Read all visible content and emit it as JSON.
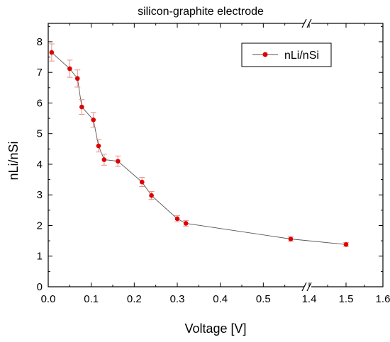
{
  "chart_data": {
    "type": "scatter",
    "title": "silicon-graphite electrode",
    "xlabel": "Voltage [V]",
    "ylabel": "nLi/nSi",
    "x_tick_labels": [
      "0.0",
      "0.1",
      "0.2",
      "0.3",
      "0.4",
      "0.5",
      "1.4",
      "1.5",
      "1.6"
    ],
    "x_tick_values": [
      0.0,
      0.1,
      0.2,
      0.3,
      0.4,
      0.5,
      1.4,
      1.5,
      1.6
    ],
    "x_axis_break": {
      "from": 0.6,
      "to": 1.4
    },
    "xlim": [
      0.0,
      1.6
    ],
    "ylim": [
      0,
      8.6
    ],
    "y_tick_values": [
      0,
      1,
      2,
      3,
      4,
      5,
      6,
      7,
      8
    ],
    "y_tick_labels": [
      "0",
      "1",
      "2",
      "3",
      "4",
      "5",
      "6",
      "7",
      "8"
    ],
    "legend_position": "top-right",
    "series": [
      {
        "name": "nLi/nSi",
        "color": "#e00000",
        "line_color": "#555555",
        "errorbar_color": "#e8908a",
        "points": [
          {
            "x": 0.008,
            "y": 7.65,
            "err": 0.28
          },
          {
            "x": 0.05,
            "y": 7.12,
            "err": 0.28
          },
          {
            "x": 0.068,
            "y": 6.8,
            "err": 0.28
          },
          {
            "x": 0.078,
            "y": 5.87,
            "err": 0.24
          },
          {
            "x": 0.105,
            "y": 5.45,
            "err": 0.24
          },
          {
            "x": 0.117,
            "y": 4.6,
            "err": 0.2
          },
          {
            "x": 0.13,
            "y": 4.15,
            "err": 0.18
          },
          {
            "x": 0.162,
            "y": 4.1,
            "err": 0.17
          },
          {
            "x": 0.218,
            "y": 3.42,
            "err": 0.15
          },
          {
            "x": 0.24,
            "y": 2.98,
            "err": 0.13
          },
          {
            "x": 0.3,
            "y": 2.22,
            "err": 0.1
          },
          {
            "x": 0.32,
            "y": 2.07,
            "err": 0.09
          },
          {
            "x": 1.35,
            "y": 1.56,
            "err": 0.07
          },
          {
            "x": 1.5,
            "y": 1.38,
            "err": 0.06
          }
        ]
      }
    ]
  }
}
